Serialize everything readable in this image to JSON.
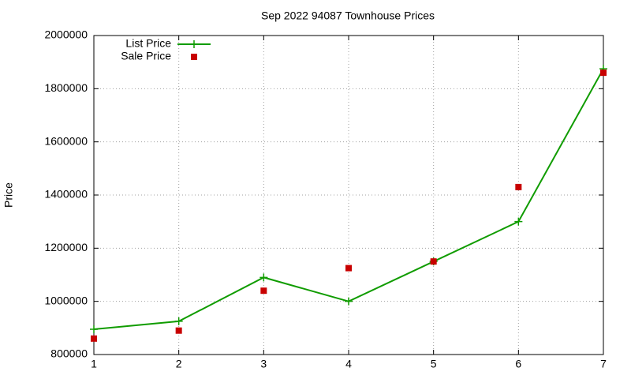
{
  "chart_data": {
    "type": "line",
    "title": "Sep 2022 94087 Townhouse Prices",
    "y_label": "Price",
    "x": [
      1,
      2,
      3,
      4,
      5,
      6,
      7
    ],
    "series": [
      {
        "name": "List Price",
        "color": "#109c00",
        "mode": "linespoints",
        "marker": "plus",
        "values": [
          895000,
          925000,
          1090000,
          1000000,
          1150000,
          1300000,
          1875000
        ]
      },
      {
        "name": "Sale Price",
        "color": "#c80000",
        "mode": "points",
        "marker": "square",
        "values": [
          860000,
          890000,
          1040000,
          1125000,
          1150000,
          1430000,
          1860000
        ]
      }
    ],
    "xlim": [
      1,
      7
    ],
    "xticks": [
      1,
      2,
      3,
      4,
      5,
      6,
      7
    ],
    "ylim": [
      800000,
      2000000
    ],
    "yticks": [
      800000,
      1000000,
      1200000,
      1400000,
      1600000,
      1800000,
      2000000
    ],
    "grid": true,
    "legend": "top-left"
  }
}
